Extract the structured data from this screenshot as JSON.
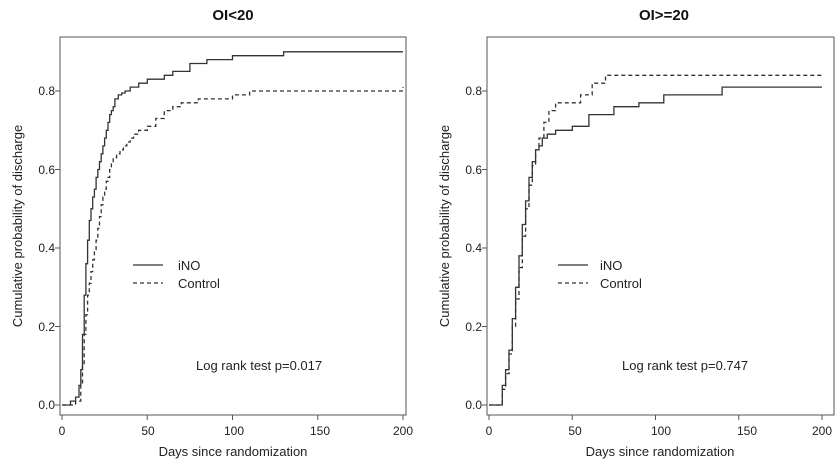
{
  "chart_data": [
    {
      "type": "line",
      "title": "OI<20",
      "xlabel": "Days since randomization",
      "ylabel": "Cumulative probability of discharge",
      "xlim": [
        0,
        200
      ],
      "ylim": [
        0,
        0.9
      ],
      "xticks": [
        0,
        50,
        100,
        150,
        200
      ],
      "xtick_labels": [
        "0",
        "50",
        "100",
        "150",
        "200"
      ],
      "yticks": [
        0.0,
        0.2,
        0.4,
        0.6,
        0.8
      ],
      "ytick_labels": [
        "0.0",
        "0.2",
        "0.4",
        "0.6",
        "0.8"
      ],
      "grid": false,
      "legend_position": "center-left",
      "annotation": "Log rank test p=0.017",
      "series": [
        {
          "name": "iNO",
          "style": "solid",
          "x": [
            0,
            5,
            8,
            10,
            11,
            12,
            13,
            14,
            15,
            16,
            17,
            18,
            19,
            20,
            21,
            22,
            23,
            24,
            25,
            26,
            27,
            28,
            29,
            30,
            31,
            33,
            35,
            37,
            40,
            45,
            50,
            55,
            60,
            65,
            75,
            85,
            100,
            130,
            200
          ],
          "y": [
            0,
            0.01,
            0.02,
            0.05,
            0.09,
            0.18,
            0.28,
            0.36,
            0.42,
            0.47,
            0.5,
            0.53,
            0.55,
            0.58,
            0.6,
            0.62,
            0.64,
            0.66,
            0.68,
            0.7,
            0.72,
            0.74,
            0.75,
            0.76,
            0.78,
            0.79,
            0.795,
            0.8,
            0.81,
            0.82,
            0.83,
            0.83,
            0.84,
            0.85,
            0.87,
            0.88,
            0.89,
            0.9,
            0.9
          ]
        },
        {
          "name": "Control",
          "style": "dashed",
          "x": [
            0,
            8,
            11,
            12,
            13,
            14,
            15,
            16,
            17,
            18,
            19,
            20,
            21,
            22,
            23,
            24,
            25,
            26,
            27,
            28,
            29,
            30,
            32,
            34,
            36,
            38,
            40,
            42,
            45,
            50,
            55,
            60,
            65,
            70,
            80,
            95,
            100,
            110,
            200
          ],
          "y": [
            0,
            0.01,
            0.05,
            0.1,
            0.18,
            0.23,
            0.28,
            0.31,
            0.34,
            0.37,
            0.39,
            0.42,
            0.45,
            0.48,
            0.51,
            0.53,
            0.55,
            0.57,
            0.58,
            0.6,
            0.62,
            0.63,
            0.64,
            0.65,
            0.66,
            0.67,
            0.68,
            0.69,
            0.7,
            0.71,
            0.73,
            0.75,
            0.76,
            0.77,
            0.78,
            0.78,
            0.79,
            0.8,
            0.81
          ]
        }
      ]
    },
    {
      "type": "line",
      "title": "OI>=20",
      "xlabel": "Days since randomization",
      "ylabel": "Cumulative probability of discharge",
      "xlim": [
        0,
        200
      ],
      "ylim": [
        0,
        0.9
      ],
      "xticks": [
        0,
        50,
        100,
        150,
        200
      ],
      "xtick_labels": [
        "0",
        "50",
        "100",
        "150",
        "200"
      ],
      "yticks": [
        0.0,
        0.2,
        0.4,
        0.6,
        0.8
      ],
      "ytick_labels": [
        "0.0",
        "0.2",
        "0.4",
        "0.6",
        "0.8"
      ],
      "grid": false,
      "legend_position": "center-left",
      "annotation": "Log rank test p=0.747",
      "series": [
        {
          "name": "iNO",
          "style": "solid",
          "x": [
            0,
            8,
            10,
            12,
            14,
            16,
            18,
            20,
            22,
            24,
            26,
            28,
            30,
            32,
            35,
            40,
            50,
            60,
            75,
            90,
            105,
            140,
            200
          ],
          "y": [
            0,
            0.05,
            0.09,
            0.14,
            0.22,
            0.3,
            0.38,
            0.46,
            0.52,
            0.58,
            0.62,
            0.65,
            0.66,
            0.68,
            0.69,
            0.7,
            0.71,
            0.74,
            0.76,
            0.77,
            0.79,
            0.81,
            0.81
          ]
        },
        {
          "name": "Control",
          "style": "dashed",
          "x": [
            0,
            8,
            10,
            12,
            14,
            16,
            18,
            20,
            22,
            24,
            26,
            28,
            30,
            33,
            36,
            40,
            55,
            62,
            70,
            200
          ],
          "y": [
            0,
            0.04,
            0.08,
            0.13,
            0.2,
            0.27,
            0.35,
            0.43,
            0.5,
            0.56,
            0.61,
            0.65,
            0.68,
            0.72,
            0.75,
            0.77,
            0.79,
            0.82,
            0.84,
            0.84
          ]
        }
      ]
    }
  ]
}
